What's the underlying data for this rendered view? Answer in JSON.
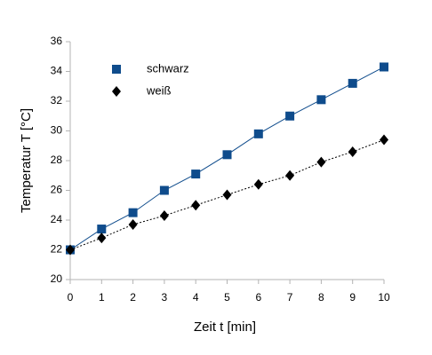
{
  "chart_data": {
    "type": "scatter",
    "x_label": "Zeit t [min]",
    "y_label": "Temperatur T [°C]",
    "xlim": [
      0,
      10
    ],
    "xticks": [
      0,
      1,
      2,
      3,
      4,
      5,
      6,
      7,
      8,
      9,
      10
    ],
    "ylim": [
      20,
      36
    ],
    "yticks": [
      20,
      22,
      24,
      26,
      28,
      30,
      32,
      34,
      36
    ],
    "grid": false,
    "legend": "upper left",
    "x": [
      0,
      1,
      2,
      3,
      4,
      5,
      6,
      7,
      8,
      9,
      10
    ],
    "series": [
      {
        "name": "schwarz",
        "color": "#0f4c8c",
        "marker": "square",
        "dash": "solid",
        "values": [
          22.0,
          23.4,
          24.5,
          26.0,
          27.1,
          28.4,
          29.8,
          31.0,
          32.1,
          33.2,
          34.3
        ]
      },
      {
        "name": "weiß",
        "color": "#000000",
        "marker": "diamond",
        "dash": "dotted",
        "values": [
          22.0,
          22.8,
          23.7,
          24.3,
          25.0,
          25.7,
          26.4,
          27.0,
          27.9,
          28.6,
          29.4
        ]
      }
    ]
  }
}
